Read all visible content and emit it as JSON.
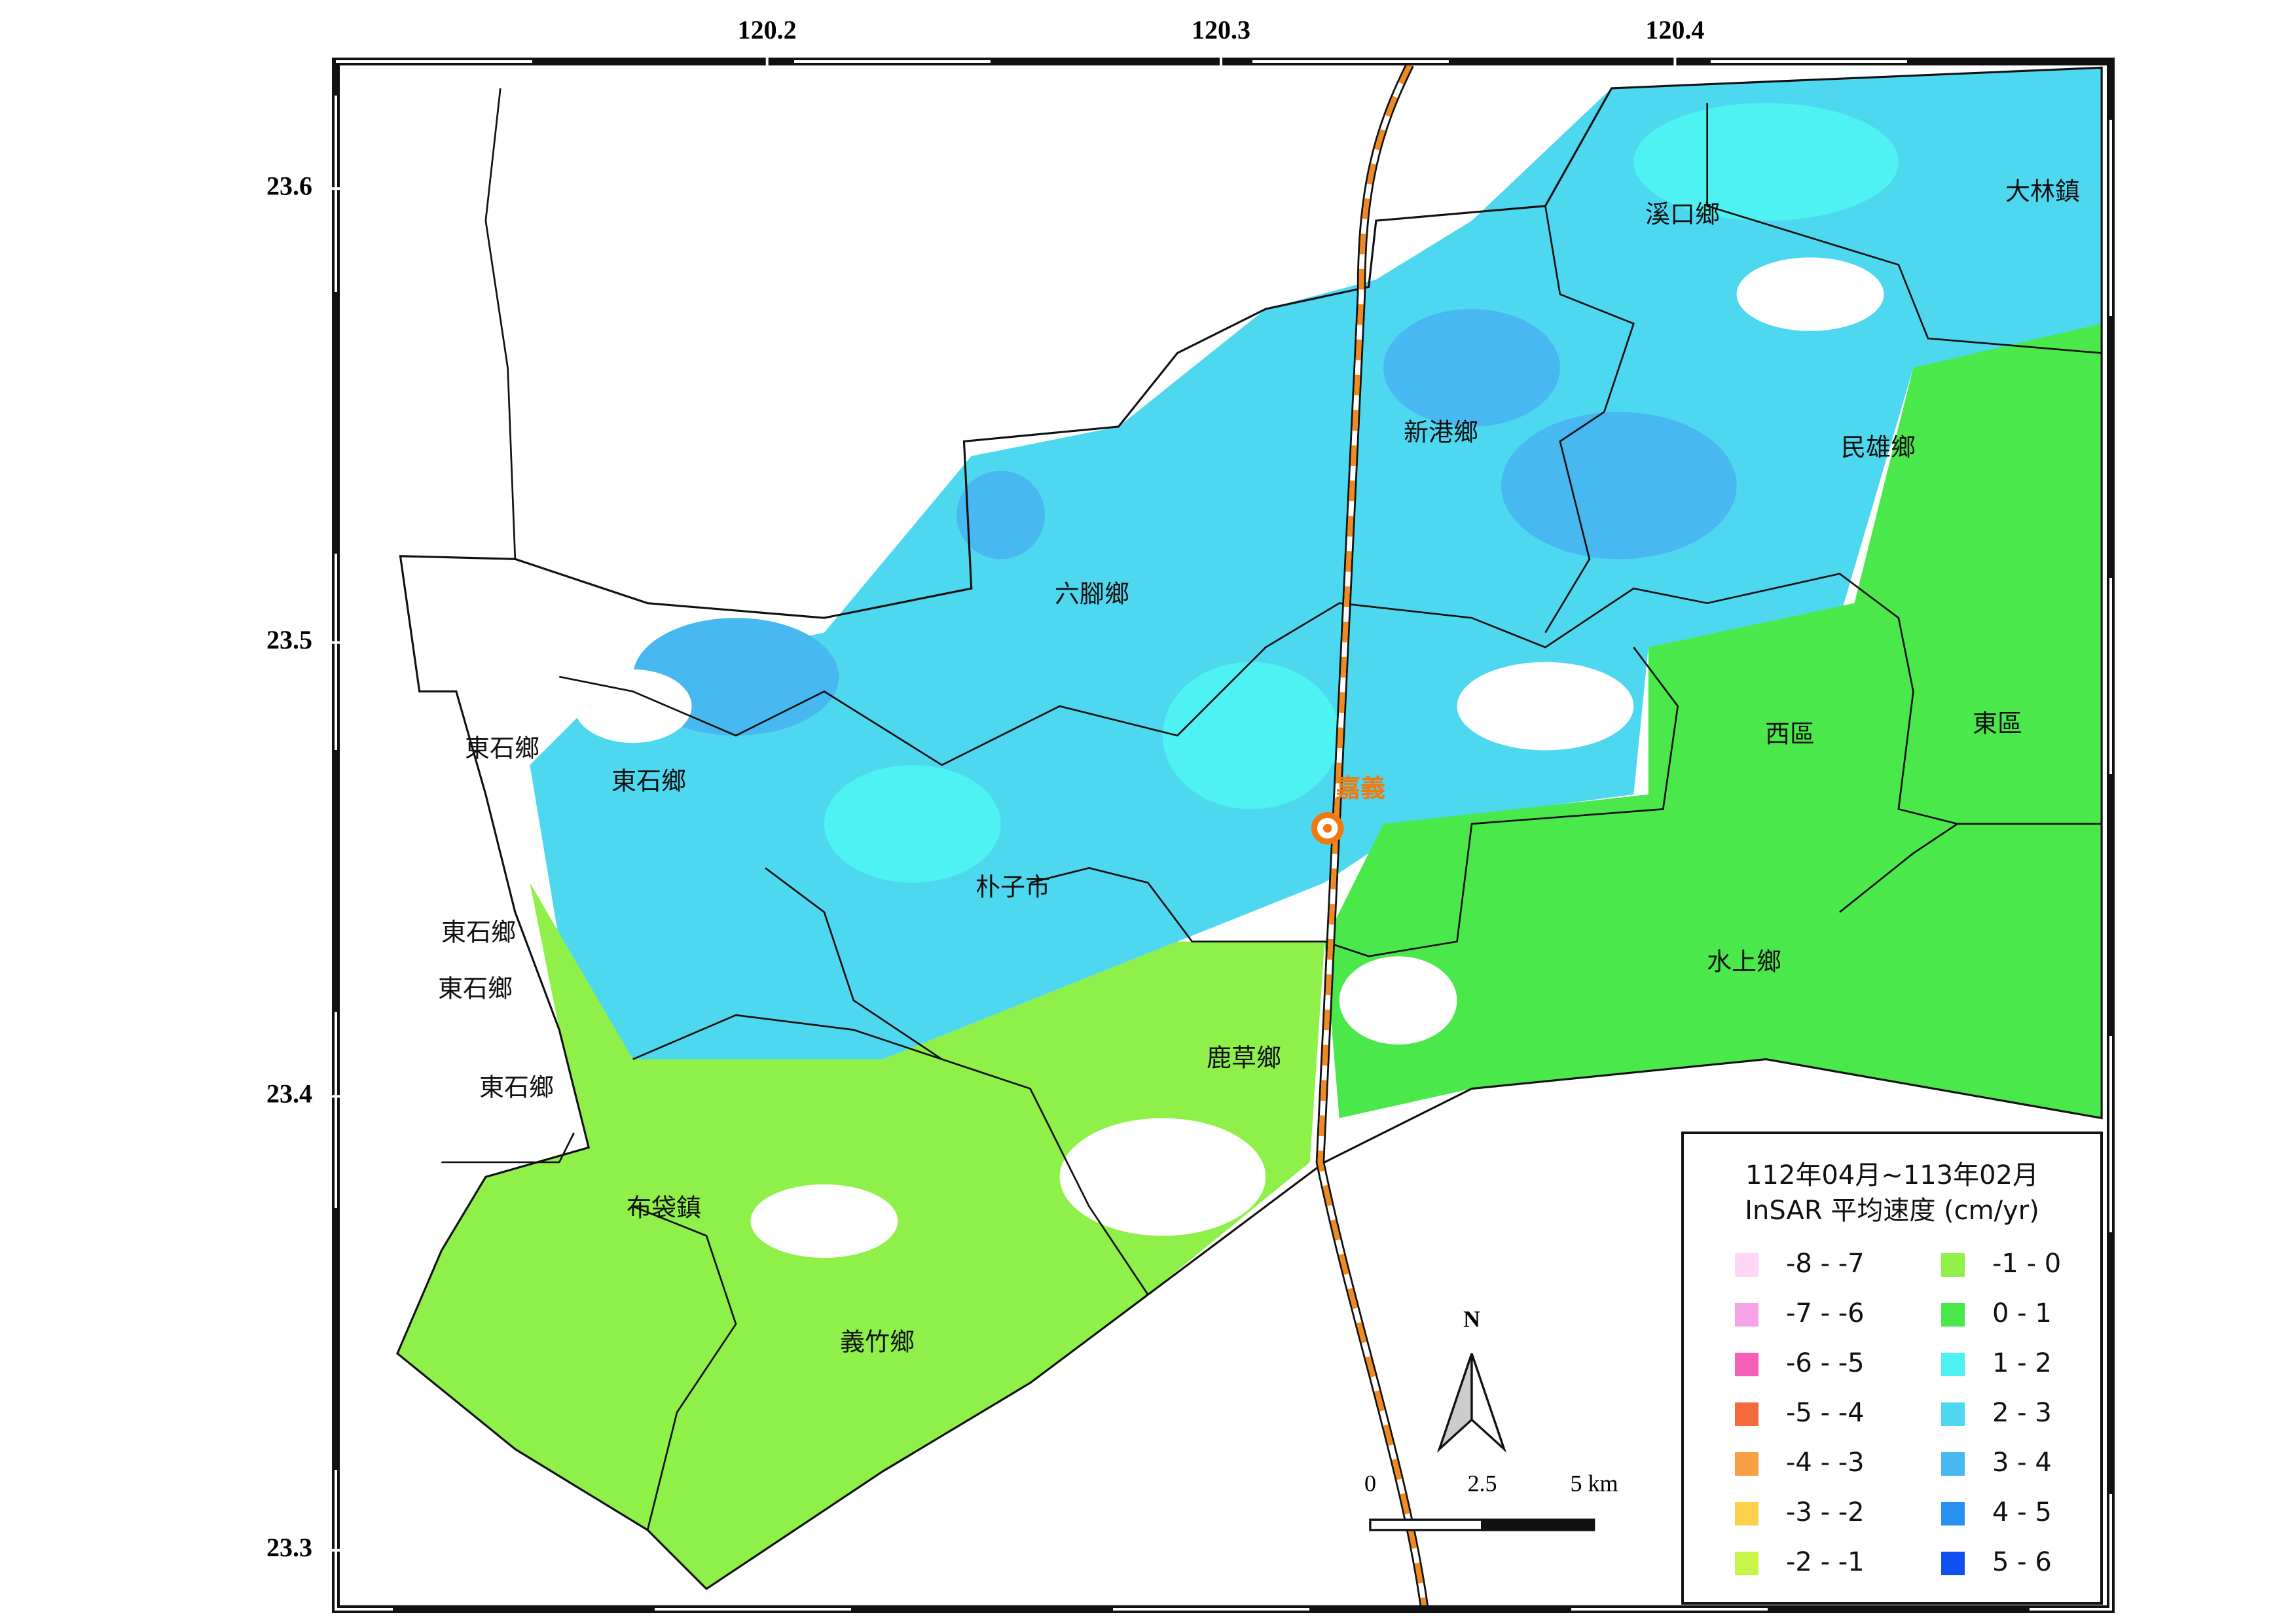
{
  "map": {
    "xticks": [
      120.2,
      120.3,
      120.4
    ],
    "yticks": [
      23.6,
      23.5,
      23.4,
      23.3
    ],
    "xlim": [
      120.105,
      120.496
    ],
    "ylim": [
      23.287,
      23.628
    ],
    "places": [
      "溪口鄉",
      "大林鎮",
      "新港鄉",
      "民雄鄉",
      "六腳鄉",
      "西區",
      "東區",
      "東石鄉",
      "東石鄉",
      "朴子市",
      "東石鄉",
      "東石鄉",
      "水上鄉",
      "鹿草鄉",
      "東石鄉",
      "布袋鎮",
      "義竹鄉"
    ],
    "station": "嘉義",
    "legend": {
      "title": [
        "112年04月~113年02月",
        "InSAR 平均速度 (cm/yr)"
      ],
      "items": [
        {
          "label": "-8 - -7",
          "color": "#ffd6f5"
        },
        {
          "label": "-7 - -6",
          "color": "#f7a3e8"
        },
        {
          "label": "-6 - -5",
          "color": "#f760b8"
        },
        {
          "label": "-5 - -4",
          "color": "#f46a3c"
        },
        {
          "label": "-4 - -3",
          "color": "#f9a044"
        },
        {
          "label": "-3 - -2",
          "color": "#fdd24a"
        },
        {
          "label": "-2 - -1",
          "color": "#c8f54a"
        },
        {
          "label": "-1 - 0",
          "color": "#8ef048"
        },
        {
          "label": "0 - 1",
          "color": "#4ae84a"
        },
        {
          "label": "1 - 2",
          "color": "#4ef2f2"
        },
        {
          "label": "2 - 3",
          "color": "#4ed8f0"
        },
        {
          "label": "3 - 4",
          "color": "#48b8f0"
        },
        {
          "label": "4 - 5",
          "color": "#2890f0"
        },
        {
          "label": "5 - 6",
          "color": "#1050f0"
        }
      ]
    },
    "scale_bar": {
      "labels": [
        "0",
        "2.5",
        "5 km"
      ]
    },
    "north": "N"
  }
}
